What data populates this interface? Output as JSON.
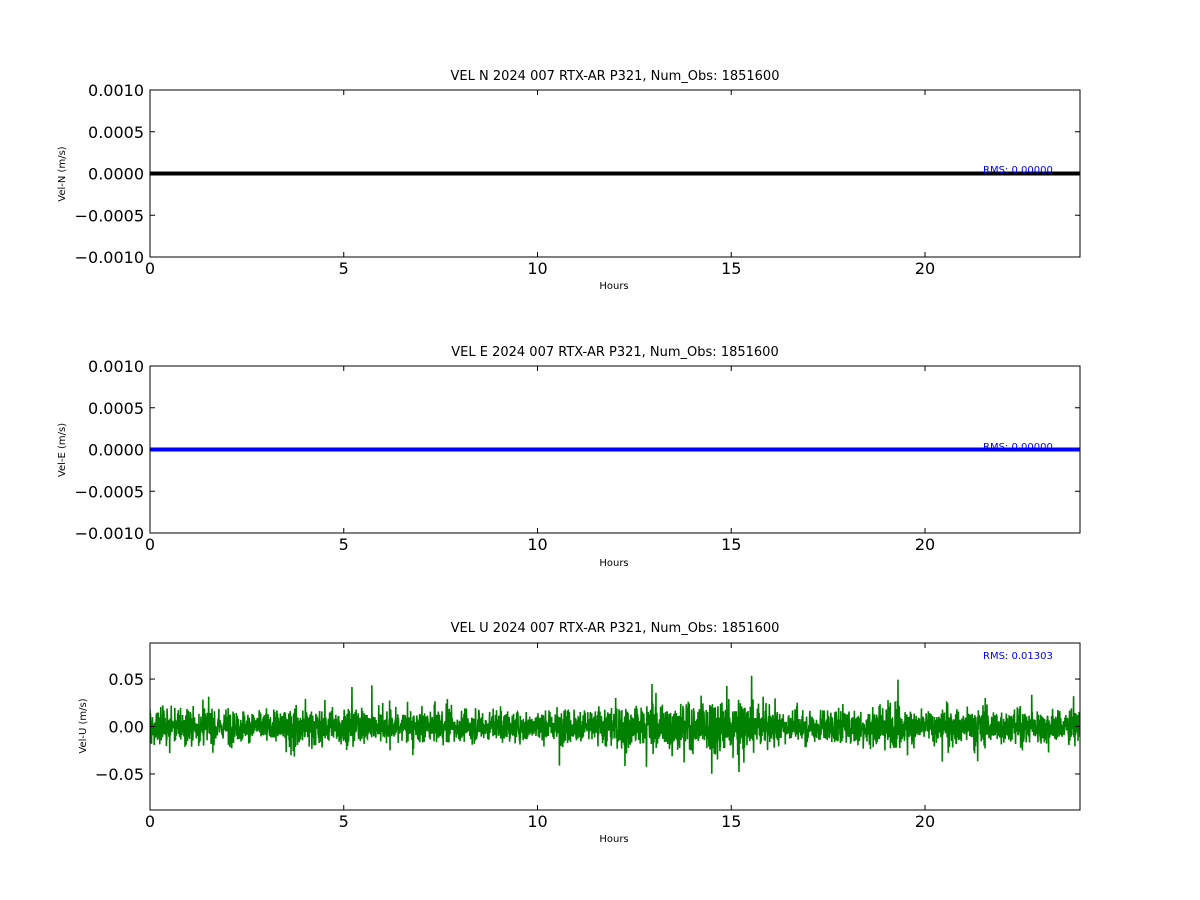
{
  "chart_data": [
    {
      "type": "line",
      "title": "VEL N 2024 007 RTX-AR  P321, Num_Obs: 1851600",
      "xlabel": "Hours",
      "ylabel": "Vel-N (m/s)",
      "xlim": [
        0,
        24
      ],
      "ylim": [
        -0.001,
        0.001
      ],
      "xticks": [
        0,
        5,
        10,
        15,
        20
      ],
      "xtick_labels": [
        "0",
        "5",
        "10",
        "15",
        "20"
      ],
      "yticks": [
        0.001,
        0.0005,
        0.0,
        -0.0005,
        -0.001
      ],
      "ytick_labels": [
        "0.0010",
        "0.0005",
        "0.0000",
        "−0.0005",
        "−0.0010"
      ],
      "grid": false,
      "line_color": "#000000",
      "series": [
        {
          "x": [
            0,
            24
          ],
          "values": [
            0.0,
            0.0
          ]
        }
      ],
      "annotation": {
        "text": "RMS:  0.00000",
        "color": "#0000ff"
      }
    },
    {
      "type": "line",
      "title": "VEL E 2024 007 RTX-AR  P321, Num_Obs: 1851600",
      "xlabel": "Hours",
      "ylabel": "Vel-E (m/s)",
      "xlim": [
        0,
        24
      ],
      "ylim": [
        -0.001,
        0.001
      ],
      "xticks": [
        0,
        5,
        10,
        15,
        20
      ],
      "xtick_labels": [
        "0",
        "5",
        "10",
        "15",
        "20"
      ],
      "yticks": [
        0.001,
        0.0005,
        0.0,
        -0.0005,
        -0.001
      ],
      "ytick_labels": [
        "0.0010",
        "0.0005",
        "0.0000",
        "−0.0005",
        "−0.0010"
      ],
      "grid": false,
      "line_color": "#0000ff",
      "series": [
        {
          "x": [
            0,
            24
          ],
          "values": [
            0.0,
            0.0
          ]
        }
      ],
      "annotation": {
        "text": "RMS:  0.00000",
        "color": "#0000ff"
      }
    },
    {
      "type": "line",
      "title": "VEL U 2024 007 RTX-AR  P321, Num_Obs: 1851600",
      "xlabel": "Hours",
      "ylabel": "Vel-U (m/s)",
      "xlim": [
        0,
        24
      ],
      "ylim": [
        -0.088,
        0.088
      ],
      "xticks": [
        0,
        5,
        10,
        15,
        20
      ],
      "xtick_labels": [
        "0",
        "5",
        "10",
        "15",
        "20"
      ],
      "yticks": [
        0.05,
        0.0,
        -0.05
      ],
      "ytick_labels": [
        "0.05",
        "0.00",
        "−0.05"
      ],
      "grid": false,
      "line_color": "#008000",
      "noise": {
        "rms": 0.01303,
        "envelope": [
          [
            0,
            0.022
          ],
          [
            1,
            0.024
          ],
          [
            2,
            0.022
          ],
          [
            3,
            0.02
          ],
          [
            4,
            0.026
          ],
          [
            5,
            0.024
          ],
          [
            6,
            0.02
          ],
          [
            7,
            0.022
          ],
          [
            8,
            0.02
          ],
          [
            9,
            0.02
          ],
          [
            10,
            0.02
          ],
          [
            11,
            0.024
          ],
          [
            12,
            0.028
          ],
          [
            13,
            0.03
          ],
          [
            14,
            0.028
          ],
          [
            14.8,
            0.042
          ],
          [
            15.2,
            0.036
          ],
          [
            16,
            0.022
          ],
          [
            17,
            0.02
          ],
          [
            18,
            0.024
          ],
          [
            19,
            0.028
          ],
          [
            20,
            0.024
          ],
          [
            21,
            0.026
          ],
          [
            22,
            0.022
          ],
          [
            23,
            0.022
          ],
          [
            24,
            0.02
          ]
        ]
      },
      "annotation": {
        "text": "RMS:  0.01303",
        "color": "#0000ff"
      }
    }
  ]
}
